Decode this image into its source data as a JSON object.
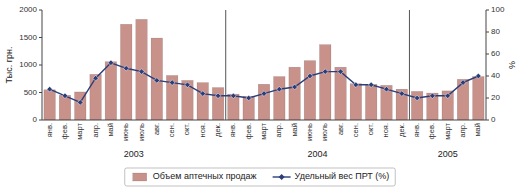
{
  "chart_data": {
    "type": "bar",
    "categories": [
      "янв.",
      "фев.",
      "март",
      "апр.",
      "май",
      "июнь",
      "июль",
      "авг.",
      "сен.",
      "окт.",
      "ноя.",
      "дек.",
      "янв.",
      "фев.",
      "март",
      "апр.",
      "май",
      "июнь",
      "июль",
      "авг.",
      "сен.",
      "окт.",
      "ноя.",
      "дек.",
      "янв.",
      "фев.",
      "март",
      "апр.",
      "май"
    ],
    "series": [
      {
        "name": "Объем аптечных продаж",
        "type": "bar",
        "color": "#c8918a",
        "values": [
          550,
          450,
          510,
          830,
          1060,
          1740,
          1830,
          1490,
          810,
          720,
          680,
          590,
          470,
          430,
          650,
          790,
          960,
          1080,
          1370,
          960,
          660,
          650,
          630,
          560,
          520,
          490,
          530,
          740,
          790
        ]
      },
      {
        "name": "Удельный вес ПРТ (%)",
        "type": "line",
        "axis": "y2",
        "color": "#2c3e7a",
        "marker": "diamond",
        "values": [
          28,
          22,
          16,
          38,
          52,
          47,
          44,
          36,
          34,
          32,
          24,
          22,
          22,
          20,
          24,
          28,
          30,
          40,
          44,
          44,
          32,
          32,
          28,
          24,
          20,
          22,
          22,
          34,
          40
        ]
      }
    ],
    "ylabel": "Тыс. грн.",
    "y2label": "%",
    "ylim": [
      0,
      2000
    ],
    "yticks": [
      0,
      500,
      1000,
      1500,
      2000
    ],
    "y2lim": [
      0,
      100
    ],
    "y2ticks": [
      0,
      20,
      40,
      60,
      80,
      100
    ],
    "annotations": [
      {
        "text": "2003",
        "x": 5.5,
        "separator_x": 11.5
      },
      {
        "text": "2004",
        "x": 17.5,
        "separator_x": 23.5
      },
      {
        "text": "2005",
        "x": 26.0,
        "separator_x": null
      }
    ],
    "grid": false,
    "legend": "bottom"
  }
}
